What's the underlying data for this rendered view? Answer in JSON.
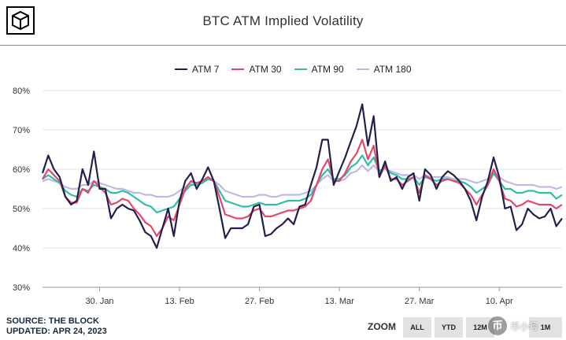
{
  "header": {
    "title": "BTC ATM Implied Volatility"
  },
  "legend": [
    {
      "label": "ATM 7",
      "color": "#22214c"
    },
    {
      "label": "ATM 30",
      "color": "#e5476a"
    },
    {
      "label": "ATM 90",
      "color": "#2cbfa6"
    },
    {
      "label": "ATM 180",
      "color": "#bdb9e6"
    }
  ],
  "footer": {
    "source": "SOURCE: THE BLOCK",
    "updated": "UPDATED: APR 24, 2023"
  },
  "zoom": {
    "label": "ZOOM",
    "buttons": [
      "ALL",
      "YTD",
      "12M",
      "1M"
    ]
  },
  "watermark": {
    "badge": "币",
    "text": "币小号"
  },
  "chart_data": {
    "type": "line",
    "title": "BTC ATM Implied Volatility",
    "y_unit": "%",
    "ylim": [
      30,
      80
    ],
    "y_ticks": [
      30,
      40,
      50,
      60,
      70,
      80
    ],
    "y_tick_labels": [
      "30%",
      "40%",
      "50%",
      "60%",
      "70%",
      "80%"
    ],
    "x_range": [
      "2023-01-20",
      "2023-04-24"
    ],
    "x_ticks": [
      "30. Jan",
      "13. Feb",
      "27. Feb",
      "13. Mar",
      "27. Mar",
      "10. Apr"
    ],
    "x_tick_day_index": [
      10,
      24,
      38,
      52,
      66,
      80
    ],
    "grid": "horizontal",
    "series": [
      {
        "name": "ATM 7",
        "color": "#22214c",
        "values": [
          59.0,
          63.5,
          60.0,
          58.0,
          53.0,
          51.0,
          52.0,
          60.0,
          56.0,
          64.5,
          55.0,
          55.0,
          47.5,
          50.0,
          51.0,
          50.0,
          49.5,
          47.0,
          44.0,
          43.0,
          40.0,
          45.0,
          50.0,
          43.0,
          52.0,
          57.0,
          59.0,
          55.0,
          57.5,
          60.5,
          57.0,
          50.0,
          42.5,
          45.0,
          45.0,
          45.0,
          46.0,
          50.5,
          51.0,
          43.0,
          43.5,
          45.0,
          46.0,
          47.5,
          46.0,
          50.5,
          51.0,
          56.0,
          60.5,
          67.5,
          67.5,
          56.0,
          59.5,
          63.0,
          67.0,
          71.0,
          76.5,
          66.0,
          73.5,
          58.0,
          62.0,
          57.0,
          58.0,
          55.0,
          58.0,
          59.0,
          52.0,
          60.0,
          58.5,
          55.0,
          58.0,
          59.5,
          58.5,
          57.0,
          55.0,
          52.0,
          47.0,
          53.0,
          57.0,
          63.0,
          58.0,
          50.0,
          50.5,
          44.5,
          46.0,
          50.0,
          48.5,
          47.5,
          48.0,
          50.0,
          45.5,
          47.5
        ]
      },
      {
        "name": "ATM 30",
        "color": "#e5476a",
        "values": [
          57.5,
          60.0,
          58.5,
          57.0,
          53.0,
          51.5,
          51.5,
          55.0,
          54.0,
          57.0,
          55.5,
          54.0,
          51.0,
          51.5,
          52.5,
          52.0,
          50.0,
          48.5,
          46.5,
          45.5,
          43.0,
          45.0,
          48.0,
          47.0,
          51.0,
          55.0,
          57.0,
          56.5,
          57.0,
          58.0,
          57.0,
          53.0,
          48.5,
          48.0,
          47.5,
          47.5,
          48.0,
          49.5,
          50.0,
          48.0,
          48.0,
          48.5,
          49.0,
          49.5,
          49.5,
          50.0,
          50.5,
          52.0,
          56.0,
          60.0,
          62.5,
          57.0,
          57.0,
          59.0,
          62.0,
          64.0,
          67.5,
          62.5,
          66.0,
          58.0,
          61.0,
          57.5,
          57.5,
          56.0,
          57.0,
          58.0,
          54.0,
          58.5,
          57.5,
          56.0,
          57.0,
          57.5,
          57.0,
          56.5,
          55.0,
          53.5,
          51.0,
          53.5,
          56.0,
          60.0,
          57.0,
          52.5,
          52.0,
          50.5,
          51.0,
          52.0,
          51.5,
          51.0,
          51.0,
          51.0,
          50.0,
          51.0
        ]
      },
      {
        "name": "ATM 90",
        "color": "#2cbfa6",
        "values": [
          57.5,
          58.5,
          57.5,
          56.5,
          54.5,
          53.5,
          53.0,
          55.0,
          54.5,
          56.0,
          55.5,
          55.0,
          54.0,
          54.0,
          54.5,
          54.0,
          53.0,
          52.0,
          51.0,
          50.5,
          49.0,
          49.5,
          50.0,
          50.5,
          52.5,
          54.5,
          56.0,
          56.0,
          56.5,
          57.5,
          57.0,
          54.5,
          52.0,
          51.5,
          51.0,
          50.5,
          50.5,
          51.0,
          51.5,
          51.0,
          51.0,
          51.0,
          51.5,
          52.0,
          52.0,
          52.0,
          52.5,
          53.5,
          56.0,
          58.5,
          60.0,
          57.5,
          57.5,
          58.5,
          60.5,
          61.5,
          63.5,
          61.0,
          63.0,
          59.5,
          60.5,
          59.0,
          58.5,
          57.5,
          57.5,
          58.0,
          56.0,
          58.0,
          57.5,
          57.0,
          57.5,
          57.5,
          57.0,
          57.0,
          56.5,
          55.5,
          54.0,
          55.0,
          56.0,
          59.0,
          57.0,
          55.0,
          55.0,
          54.0,
          54.0,
          54.5,
          54.5,
          54.0,
          54.0,
          54.0,
          52.5,
          53.5
        ]
      },
      {
        "name": "ATM 180",
        "color": "#bdb9e6",
        "values": [
          57.0,
          57.5,
          57.0,
          56.5,
          55.5,
          55.0,
          55.0,
          56.0,
          56.0,
          57.0,
          56.5,
          56.0,
          55.5,
          55.0,
          55.0,
          54.5,
          54.0,
          54.0,
          53.5,
          53.5,
          53.0,
          53.0,
          53.0,
          53.5,
          54.5,
          55.5,
          56.5,
          56.5,
          57.0,
          57.5,
          57.0,
          56.0,
          54.5,
          54.0,
          53.5,
          53.0,
          53.0,
          53.0,
          53.5,
          53.5,
          53.0,
          53.0,
          53.5,
          53.5,
          53.5,
          53.5,
          54.0,
          54.5,
          56.0,
          57.5,
          58.5,
          57.0,
          57.0,
          57.5,
          59.0,
          59.5,
          61.0,
          59.5,
          61.0,
          59.5,
          60.0,
          59.5,
          59.0,
          58.5,
          58.5,
          58.5,
          57.5,
          58.5,
          58.0,
          58.0,
          58.0,
          58.0,
          57.5,
          57.5,
          57.5,
          57.0,
          56.5,
          57.0,
          57.5,
          59.5,
          58.0,
          57.0,
          56.5,
          56.0,
          56.0,
          56.0,
          56.0,
          55.5,
          55.5,
          55.5,
          55.0,
          55.5
        ]
      }
    ]
  }
}
